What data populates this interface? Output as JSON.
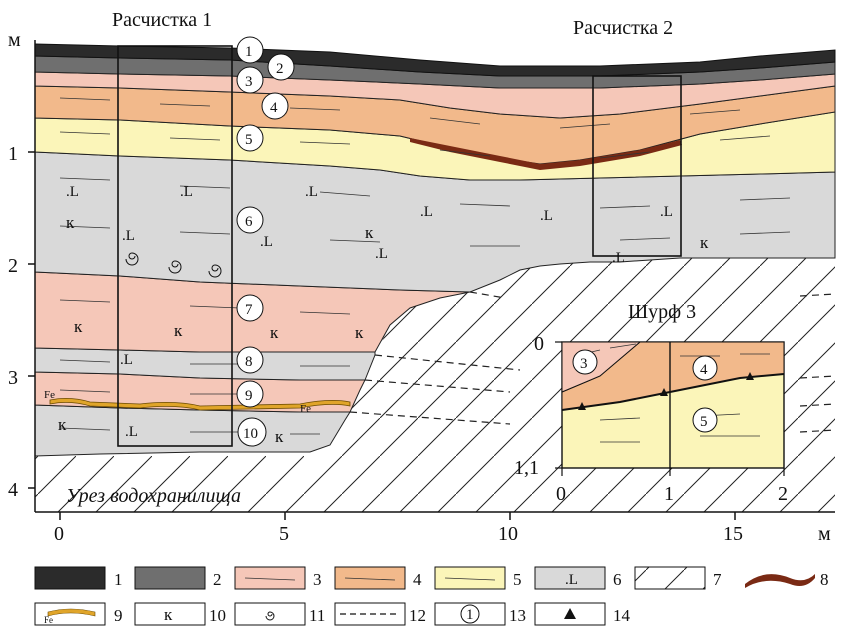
{
  "titles": {
    "clearing1": "Расчистка 1",
    "clearing2": "Расчистка 2",
    "pit3": "Шурф 3",
    "reservoir": "Урез водохранилища"
  },
  "axes": {
    "y_unit": "м",
    "y_ticks": [
      "1",
      "2",
      "3",
      "4"
    ],
    "x_unit": "м",
    "x_ticks": [
      "0",
      "5",
      "10",
      "15"
    ]
  },
  "pit_axes": {
    "y_ticks": [
      "0",
      "1,1"
    ],
    "x_ticks": [
      "0",
      "1",
      "2"
    ]
  },
  "layers": [
    "1",
    "2",
    "3",
    "4",
    "5",
    "6",
    "7",
    "8",
    "9",
    "10"
  ],
  "pit_layers": [
    "3",
    "4",
    "5"
  ],
  "symbols": {
    "clay": "к",
    "iron": "Fe",
    "loess": ".L"
  },
  "legend": [
    "1",
    "2",
    "3",
    "4",
    "5",
    "6",
    "7",
    "8",
    "9",
    "10",
    "11",
    "12",
    "13",
    "14"
  ],
  "colors": {
    "layer1": "#2b2b2b",
    "layer2": "#6f6f6f",
    "layer3": "#f5c7b8",
    "layer4": "#f2b98b",
    "layer5": "#fbf5b9",
    "layer6": "#d9d9d9",
    "layer7": "#f5c7b8",
    "layer8": "#d9d9d9",
    "layer9": "#f5c7b8",
    "layer10": "#d9d9d9",
    "humus": "#7a2a14",
    "ferric": "#e0a52a"
  }
}
